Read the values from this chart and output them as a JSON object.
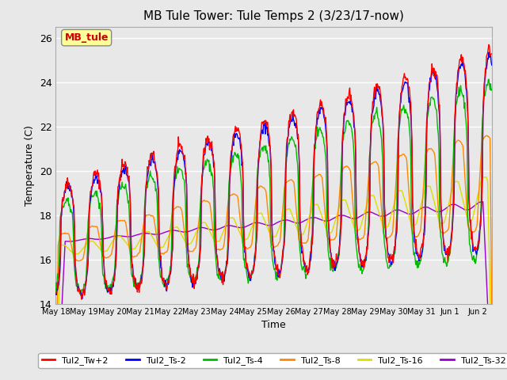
{
  "title": "MB Tule Tower: Tule Temps 2 (3/23/17-now)",
  "xlabel": "Time",
  "ylabel": "Temperature (C)",
  "ylim": [
    14,
    26.5
  ],
  "background_color": "#e8e8e8",
  "plot_bg_color": "#e8e8e8",
  "grid_color": "#ffffff",
  "series_colors": {
    "Tul2_Tw+2": "#ff0000",
    "Tul2_Ts-2": "#0000ff",
    "Tul2_Ts-4": "#00bb00",
    "Tul2_Ts-8": "#ff8800",
    "Tul2_Ts-16": "#dddd00",
    "Tul2_Ts-32": "#9900cc"
  },
  "yticks": [
    14,
    16,
    18,
    20,
    22,
    24,
    26
  ],
  "x_tick_labels": [
    "May 18",
    "May 19",
    "May 20",
    "May 21",
    "May 22",
    "May 23",
    "May 24",
    "May 25",
    "May 26",
    "May 27",
    "May 28",
    "May 29",
    "May 30",
    "May 31",
    "Jun 1",
    "Jun 2"
  ],
  "annotation_box": "MB_tule",
  "annotation_color": "#cc0000",
  "n_days": 15.5,
  "pts_per_day": 48
}
